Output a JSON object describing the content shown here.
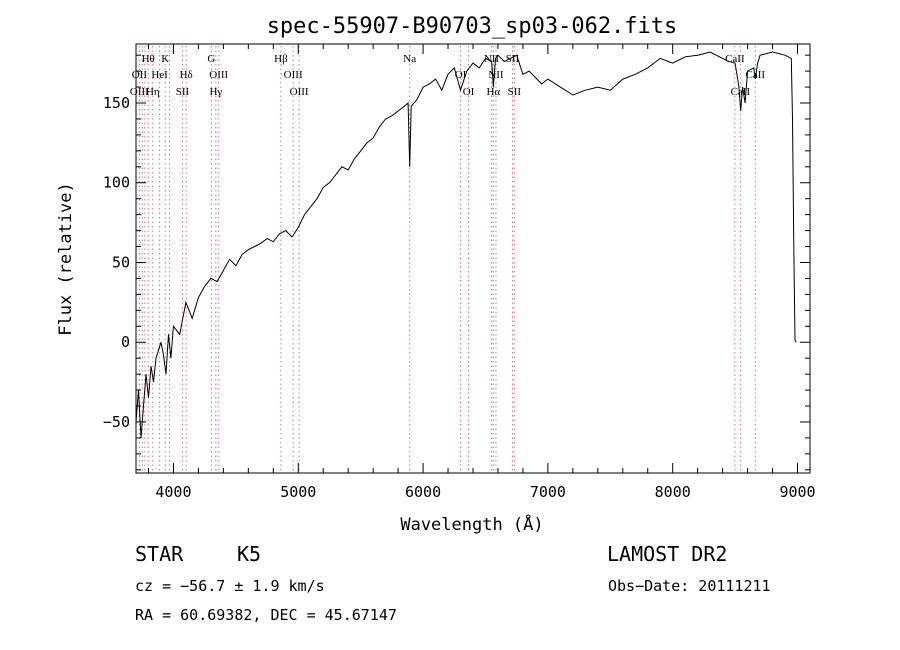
{
  "chart_data": {
    "type": "line",
    "title": "spec-55907-B90703_sp03-062.fits",
    "xlabel": "Wavelength (Å)",
    "ylabel": "Flux (relative)",
    "xlim": [
      3700,
      9100
    ],
    "ylim": [
      -82,
      187
    ],
    "x_ticks": [
      4000,
      5000,
      6000,
      7000,
      8000,
      9000
    ],
    "y_ticks": [
      -50,
      0,
      50,
      100,
      150
    ],
    "grid": false,
    "series": [
      {
        "color": "#000000",
        "x": [
          3700,
          3720,
          3740,
          3760,
          3780,
          3800,
          3820,
          3840,
          3860,
          3880,
          3900,
          3920,
          3940,
          3960,
          3980,
          4000,
          4050,
          4100,
          4150,
          4200,
          4250,
          4300,
          4350,
          4400,
          4450,
          4500,
          4550,
          4600,
          4650,
          4700,
          4750,
          4800,
          4850,
          4900,
          4950,
          5000,
          5050,
          5100,
          5150,
          5200,
          5250,
          5300,
          5350,
          5400,
          5450,
          5500,
          5550,
          5600,
          5650,
          5700,
          5750,
          5800,
          5850,
          5880,
          5893,
          5905,
          5950,
          6000,
          6050,
          6100,
          6150,
          6200,
          6250,
          6300,
          6350,
          6400,
          6450,
          6500,
          6550,
          6563,
          6580,
          6600,
          6650,
          6700,
          6750,
          6800,
          6850,
          6900,
          6950,
          7000,
          7100,
          7200,
          7300,
          7400,
          7500,
          7600,
          7700,
          7800,
          7900,
          8000,
          8100,
          8200,
          8300,
          8400,
          8450,
          8500,
          8530,
          8545,
          8560,
          8580,
          8600,
          8650,
          8662,
          8680,
          8700,
          8800,
          8900,
          8950,
          8960,
          8970,
          8980,
          8990
        ],
        "y": [
          -50,
          -30,
          -60,
          -40,
          -20,
          -35,
          -15,
          -25,
          -10,
          -5,
          0,
          -8,
          -20,
          5,
          -10,
          10,
          5,
          25,
          15,
          28,
          35,
          40,
          38,
          45,
          52,
          48,
          55,
          58,
          60,
          62,
          65,
          63,
          68,
          70,
          66,
          72,
          80,
          85,
          90,
          97,
          100,
          105,
          110,
          108,
          115,
          120,
          125,
          128,
          135,
          140,
          142,
          145,
          148,
          150,
          110,
          148,
          152,
          160,
          162,
          165,
          158,
          168,
          172,
          158,
          170,
          175,
          172,
          178,
          176,
          160,
          178,
          180,
          176,
          178,
          180,
          168,
          170,
          166,
          162,
          165,
          160,
          155,
          158,
          160,
          158,
          165,
          168,
          172,
          178,
          175,
          179,
          180,
          182,
          178,
          176,
          175,
          160,
          145,
          160,
          150,
          170,
          172,
          165,
          175,
          180,
          182,
          180,
          178,
          140,
          60,
          1,
          0
        ]
      }
    ],
    "line_labels": [
      {
        "name": "Hθ",
        "wave": 3798,
        "row": 1,
        "color": "#000000"
      },
      {
        "name": "K",
        "wave": 3934,
        "row": 1,
        "color": "#000000"
      },
      {
        "name": "G",
        "wave": 4304,
        "row": 1,
        "color": "#000000"
      },
      {
        "name": "Hβ",
        "wave": 4861,
        "row": 1,
        "color": "#000000"
      },
      {
        "name": "Na",
        "wave": 5893,
        "row": 1,
        "color": "#000000"
      },
      {
        "name": "NII",
        "wave": 6548,
        "row": 1,
        "color": "#000000"
      },
      {
        "name": "SII",
        "wave": 6716,
        "row": 1,
        "color": "#000000"
      },
      {
        "name": "CaII",
        "wave": 8498,
        "row": 1,
        "color": "#000000"
      },
      {
        "name": "OII",
        "wave": 3727,
        "row": 2,
        "color": "#000000"
      },
      {
        "name": "HeI",
        "wave": 3889,
        "row": 2,
        "color": "#000000"
      },
      {
        "name": "Hδ",
        "wave": 4102,
        "row": 2,
        "color": "#000000"
      },
      {
        "name": "OIII",
        "wave": 4363,
        "row": 2,
        "color": "#000000"
      },
      {
        "name": "OIII",
        "wave": 4959,
        "row": 2,
        "color": "#000000"
      },
      {
        "name": "OI",
        "wave": 6300,
        "row": 2,
        "color": "#000000"
      },
      {
        "name": "NII",
        "wave": 6584,
        "row": 2,
        "color": "#000000"
      },
      {
        "name": "CaII",
        "wave": 8662,
        "row": 2,
        "color": "#000000"
      },
      {
        "name": "OIII",
        "wave": 3727,
        "row": 3,
        "color": "#000000"
      },
      {
        "name": "Hη",
        "wave": 3835,
        "row": 3,
        "color": "#000000"
      },
      {
        "name": "SII",
        "wave": 4072,
        "row": 3,
        "color": "#000000"
      },
      {
        "name": "Hγ",
        "wave": 4340,
        "row": 3,
        "color": "#000000"
      },
      {
        "name": "OIII",
        "wave": 5007,
        "row": 3,
        "color": "#000000"
      },
      {
        "name": "OI",
        "wave": 6364,
        "row": 3,
        "color": "#000000"
      },
      {
        "name": "Hα",
        "wave": 6563,
        "row": 3,
        "color": "#000000"
      },
      {
        "name": "SII",
        "wave": 6731,
        "row": 3,
        "color": "#000000"
      },
      {
        "name": "CaII",
        "wave": 8542,
        "row": 3,
        "color": "#000000"
      }
    ],
    "marker_lines": [
      3727,
      3750,
      3771,
      3798,
      3835,
      3889,
      3934,
      3969,
      4072,
      4102,
      4304,
      4340,
      4363,
      4861,
      4959,
      5007,
      5893,
      6300,
      6364,
      6548,
      6563,
      6584,
      6716,
      6731,
      8498,
      8542,
      8662
    ],
    "marker_color": "#e07070"
  },
  "info": {
    "object_type": "STAR",
    "subclass": "K5",
    "survey": "LAMOST DR2",
    "cz": "cz = −56.7 ± 1.9 km/s",
    "obs_date": "Obs−Date: 20111211",
    "radec": "RA =  60.69382, DEC =  45.67147"
  }
}
